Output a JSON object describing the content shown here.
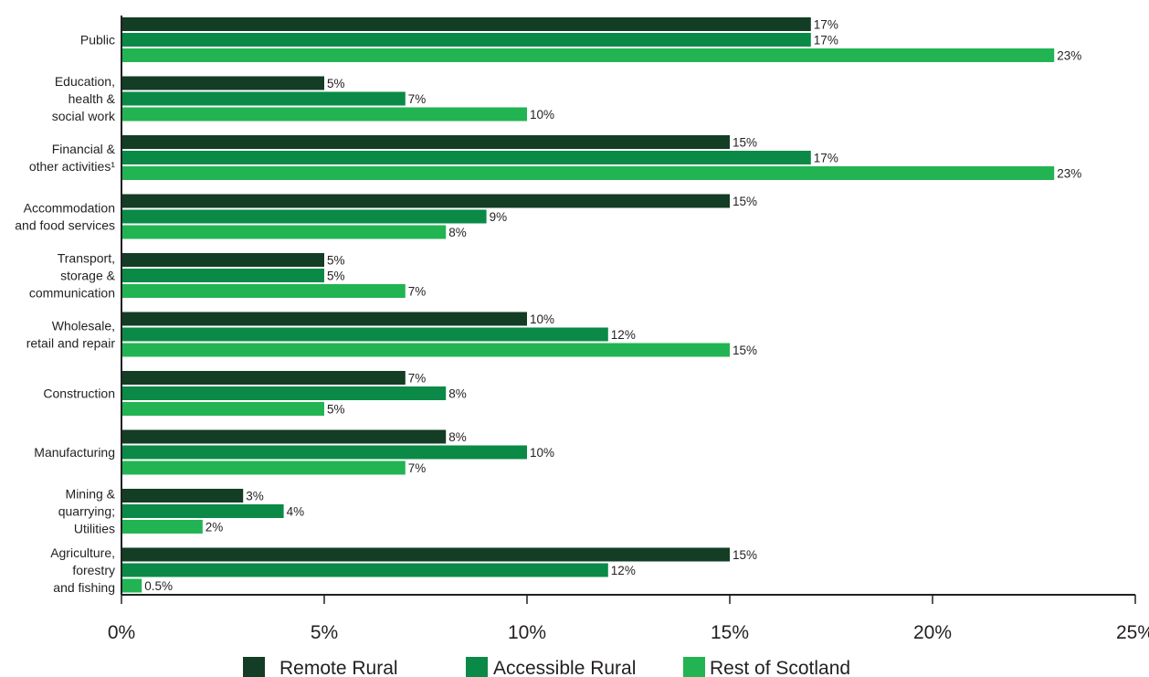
{
  "chart_data": {
    "type": "bar",
    "orientation": "horizontal",
    "categories": [
      "Public",
      "Education, health & social work",
      "Financial & other activities¹",
      "Accommodation and food services",
      "Transport, storage & communication",
      "Wholesale, retail and repair",
      "Construction",
      "Manufacturing",
      "Mining & quarrying; Utilities",
      "Agriculture, forestry and fishing"
    ],
    "category_lines": [
      [
        "Public"
      ],
      [
        "Education,",
        "health &",
        "social work"
      ],
      [
        "Financial &",
        "other activities¹"
      ],
      [
        "Accommodation",
        "and food services"
      ],
      [
        "Transport,",
        "storage &",
        "communication"
      ],
      [
        "Wholesale,",
        "retail and repair"
      ],
      [
        "Construction"
      ],
      [
        "Manufacturing"
      ],
      [
        "Mining &",
        "quarrying;",
        "Utilities"
      ],
      [
        "Agriculture,",
        "forestry",
        "and fishing"
      ]
    ],
    "series": [
      {
        "name": "Remote Rural",
        "color": "#133d24",
        "values": [
          17,
          5,
          15,
          15,
          5,
          10,
          7,
          8,
          3,
          15
        ],
        "labels": [
          "17%",
          "5%",
          "15%",
          "15%",
          "5%",
          "10%",
          "7%",
          "8%",
          "3%",
          "15%"
        ]
      },
      {
        "name": "Accessible Rural",
        "color": "#0b8a47",
        "values": [
          17,
          7,
          17,
          9,
          5,
          12,
          8,
          10,
          4,
          12
        ],
        "labels": [
          "17%",
          "7%",
          "17%",
          "9%",
          "5%",
          "12%",
          "8%",
          "10%",
          "4%",
          "12%"
        ]
      },
      {
        "name": "Rest of Scotland",
        "color": "#22b452",
        "values": [
          23,
          10,
          23,
          8,
          7,
          15,
          5,
          7,
          2,
          0.5
        ],
        "labels": [
          "23%",
          "10%",
          "23%",
          "8%",
          "7%",
          "15%",
          "5%",
          "7%",
          "2%",
          "0.5%"
        ]
      }
    ],
    "x_ticks": [
      0,
      5,
      10,
      15,
      20,
      25
    ],
    "x_tick_labels": [
      "0%",
      "5%",
      "10%",
      "15%",
      "20%",
      "25%"
    ],
    "xlim": [
      0,
      25
    ],
    "title": "",
    "xlabel": "",
    "ylabel": "",
    "grid": false,
    "legend_position": "bottom"
  }
}
